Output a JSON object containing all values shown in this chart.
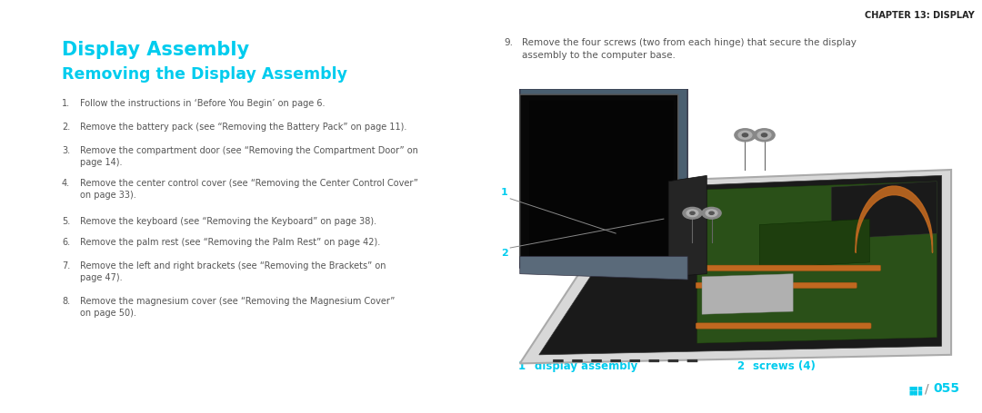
{
  "page_title": "Display Assembly",
  "section_title": "Removing the Display Assembly",
  "chapter_header": "CHAPTER 13: DISPLAY",
  "step9_label": "9.",
  "step9_text": "Remove the four screws (two from each hinge) that secure the display\nassembly to the computer base.",
  "steps": [
    "Follow the instructions in ‘Before You Begin’ on page 6.",
    "Remove the battery pack (see “Removing the Battery Pack” on page 11).",
    "Remove the compartment door (see “Removing the Compartment Door” on page 14).",
    "Remove the center control cover (see “Removing the Center Control Cover” on page 33).",
    "Remove the keyboard (see “Removing the Keyboard” on page 38).",
    "Remove the palm rest (see “Removing the Palm Rest” on page 42).",
    "Remove the left and right brackets (see “Removing the Brackets” on page 47).",
    "Remove the magnesium cover (see “Removing the Magnesium Cover” on page 50)."
  ],
  "label1_num": "1",
  "label1_text": "display assembly",
  "label2_num": "2",
  "label2_text": "screws (4)",
  "page_number": "055",
  "cyan_color": "#00CCEE",
  "text_color": "#555555",
  "header_color": "#222222",
  "dark_header_color": "#444444",
  "bg_color": "#FFFFFF",
  "img_bg": "#FFFFFF"
}
